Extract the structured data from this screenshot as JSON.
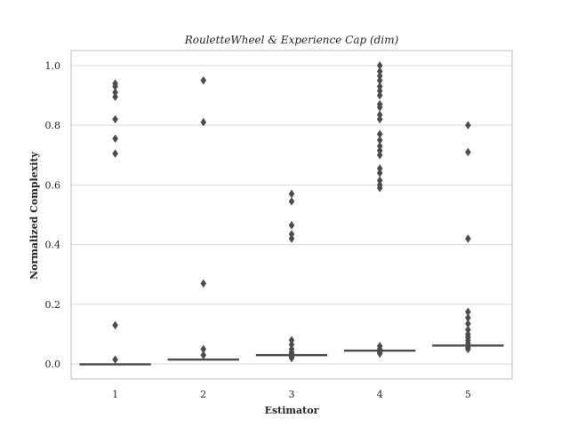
{
  "chart_data": {
    "type": "boxplot",
    "title": "RouletteWheel & Experience Cap (dim)",
    "xlabel": "Estimator",
    "ylabel": "Normalized Complexity",
    "ylim": [
      -0.05,
      1.05
    ],
    "yticks": [
      "0.0",
      "0.2",
      "0.4",
      "0.6",
      "0.8",
      "1.0"
    ],
    "categories": [
      "1",
      "2",
      "3",
      "4",
      "5"
    ],
    "grid": "horizontal",
    "colors": {
      "box": "#4c4c4c",
      "grid": "#d9d9d9",
      "frame": "#cccccc"
    },
    "boxes": [
      {
        "category": "1",
        "q1": 0.0,
        "median": 0.0,
        "q3": 0.001,
        "whisker_low": 0.0,
        "whisker_high": 0.001,
        "outliers": [
          0.015,
          0.13,
          0.705,
          0.755,
          0.82,
          0.895,
          0.91,
          0.93,
          0.94
        ]
      },
      {
        "category": "2",
        "q1": 0.014,
        "median": 0.015,
        "q3": 0.017,
        "whisker_low": 0.013,
        "whisker_high": 0.018,
        "outliers": [
          0.03,
          0.05,
          0.27,
          0.81,
          0.95
        ]
      },
      {
        "category": "3",
        "q1": 0.029,
        "median": 0.03,
        "q3": 0.032,
        "whisker_low": 0.028,
        "whisker_high": 0.033,
        "outliers": [
          0.02,
          0.025,
          0.035,
          0.04,
          0.05,
          0.065,
          0.08,
          0.42,
          0.435,
          0.465,
          0.545,
          0.57
        ]
      },
      {
        "category": "4",
        "q1": 0.044,
        "median": 0.045,
        "q3": 0.047,
        "whisker_low": 0.043,
        "whisker_high": 0.048,
        "outliers": [
          0.035,
          0.04,
          0.05,
          0.06,
          0.59,
          0.6,
          0.615,
          0.64,
          0.655,
          0.7,
          0.715,
          0.73,
          0.75,
          0.77,
          0.82,
          0.835,
          0.86,
          0.87,
          0.9,
          0.915,
          0.93,
          0.95,
          0.965,
          0.98,
          1.0
        ]
      },
      {
        "category": "5",
        "q1": 0.06,
        "median": 0.062,
        "q3": 0.064,
        "whisker_low": 0.059,
        "whisker_high": 0.066,
        "outliers": [
          0.05,
          0.055,
          0.07,
          0.08,
          0.09,
          0.1,
          0.115,
          0.135,
          0.155,
          0.175,
          0.42,
          0.71,
          0.8
        ]
      }
    ]
  }
}
